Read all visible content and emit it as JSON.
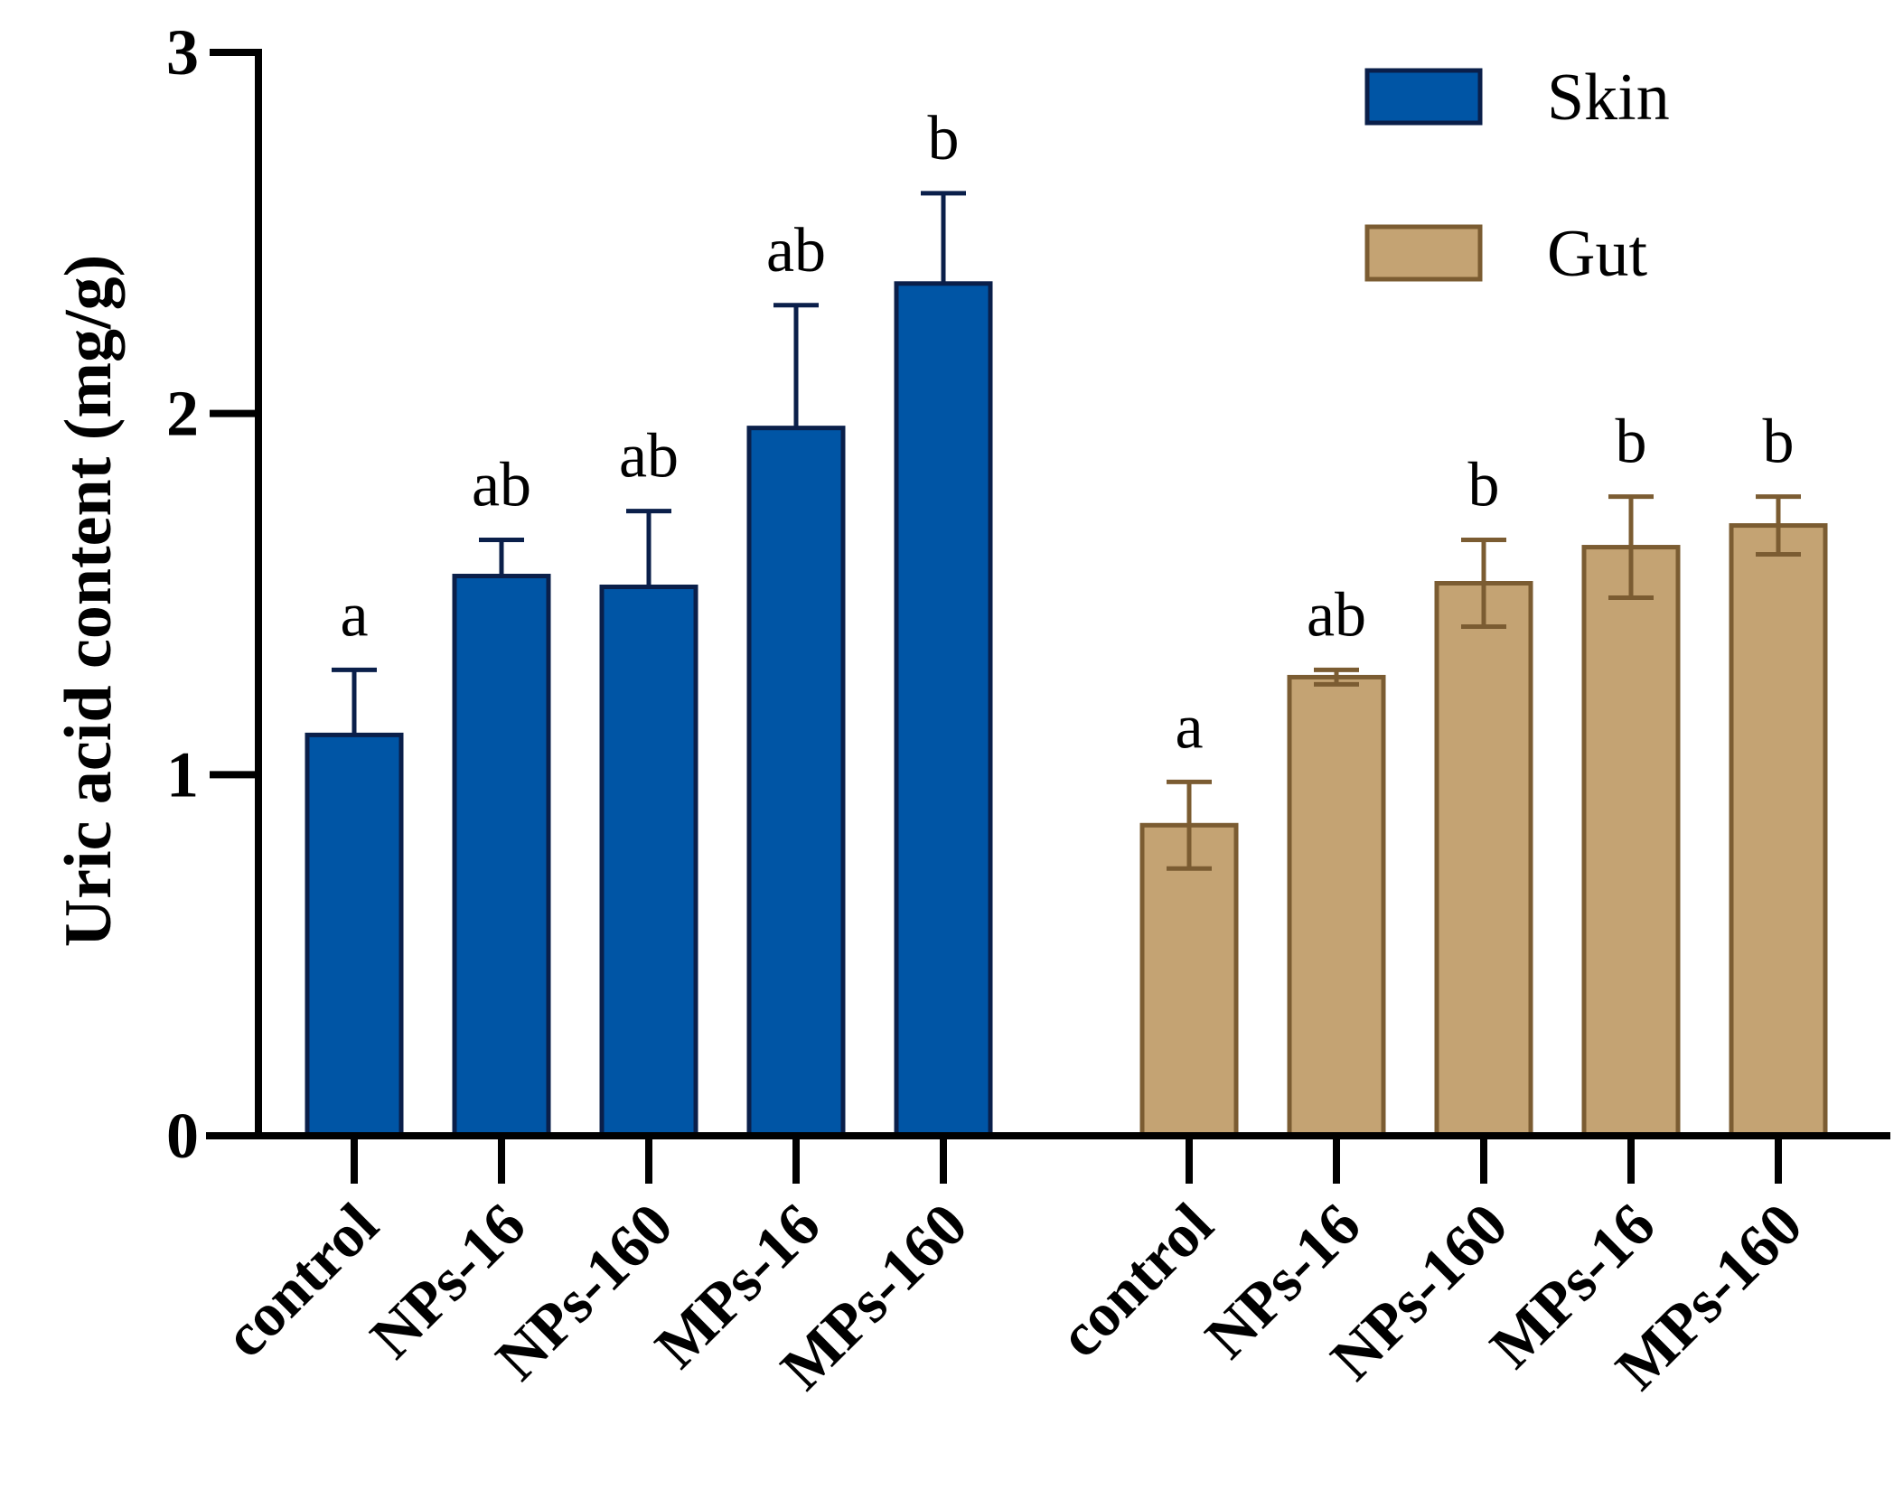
{
  "chart_data": {
    "type": "bar",
    "ylabel": "Uric acid content (mg/g)",
    "ylim": [
      0,
      3
    ],
    "yticks": [
      "0",
      "1",
      "2",
      "3"
    ],
    "legend_position": "top-right",
    "groups": [
      {
        "name": "Skin",
        "fill": "#0055a5",
        "stroke": "#0a1f4a",
        "categories": [
          "control",
          "NPs-16",
          "NPs-160",
          "MPs-16",
          "MPs-160"
        ],
        "values": [
          1.11,
          1.55,
          1.52,
          1.96,
          2.36
        ],
        "errors": [
          0.18,
          0.1,
          0.21,
          0.34,
          0.25
        ],
        "error_lower": false,
        "significance": [
          "a",
          "ab",
          "ab",
          "ab",
          "b"
        ]
      },
      {
        "name": "Gut",
        "fill": "#c4a373",
        "stroke": "#7b5c32",
        "categories": [
          "control",
          "NPs-16",
          "NPs-160",
          "MPs-16",
          "MPs-160"
        ],
        "values": [
          0.86,
          1.27,
          1.53,
          1.63,
          1.69
        ],
        "errors": [
          0.12,
          0.02,
          0.12,
          0.14,
          0.08
        ],
        "error_lower": true,
        "significance": [
          "a",
          "ab",
          "b",
          "b",
          "b"
        ]
      }
    ]
  }
}
